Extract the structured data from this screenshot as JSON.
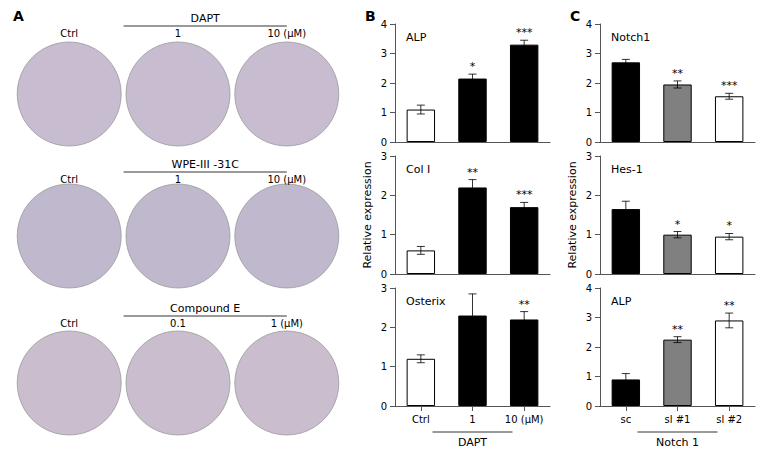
{
  "chart_data": [
    {
      "type": "image",
      "title": "A",
      "colors": [
        "#c8bcd0",
        "#c0b8cc",
        "#cabece"
      ],
      "annotations": [
        {
          "text": "DAPT",
          "labels": [
            "Ctrl",
            "1",
            "10 (μM)"
          ]
        },
        {
          "text": "WPE-III -31C",
          "labels": [
            "Ctrl",
            "1",
            "10 (μM)"
          ]
        },
        {
          "text": "Compound E",
          "labels": [
            "Ctrl",
            "0.1",
            "1 (μM)"
          ]
        }
      ]
    },
    {
      "type": "bar",
      "title": "ALP",
      "categories": [
        "Ctrl",
        "1",
        "10 (μM)"
      ],
      "values": [
        1.1,
        2.15,
        3.3
      ],
      "errors": [
        0.15,
        0.15,
        0.15
      ],
      "colors": [
        "white",
        "black",
        "black"
      ],
      "ylim": [
        0,
        4
      ],
      "yticks": [
        0,
        1,
        2,
        3,
        4
      ],
      "grid": false,
      "tick_labels": "y",
      "annotations": [
        {
          "text": "B"
        },
        {
          "category": "1",
          "text": "*"
        },
        {
          "category": "10 (μM)",
          "text": "***"
        }
      ]
    },
    {
      "type": "bar",
      "title": "Col I",
      "categories": [
        "Ctrl",
        "1",
        "10 (μM)"
      ],
      "values": [
        0.6,
        2.2,
        1.7
      ],
      "errors": [
        0.1,
        0.2,
        0.12
      ],
      "colors": [
        "white",
        "black",
        "black"
      ],
      "ylim": [
        0,
        3
      ],
      "yticks": [
        0,
        1,
        2,
        3
      ],
      "grid": false,
      "tick_labels": "y",
      "ylabel": "Relative expression",
      "annotations": [
        {
          "category": "1",
          "text": "**"
        },
        {
          "category": "10 (μM)",
          "text": "***"
        }
      ]
    },
    {
      "type": "bar",
      "title": "Osterix",
      "categories": [
        "Ctrl",
        "1",
        "10 (μM)"
      ],
      "values": [
        1.2,
        2.3,
        2.2
      ],
      "errors": [
        0.1,
        0.55,
        0.2
      ],
      "colors": [
        "white",
        "black",
        "black"
      ],
      "ylim": [
        0,
        3
      ],
      "yticks": [
        0,
        1,
        2,
        3
      ],
      "grid": false,
      "xlabel": "DAPT",
      "annotations": [
        {
          "category": "10 (μM)",
          "text": "**"
        }
      ]
    },
    {
      "type": "bar",
      "title": "Notch1",
      "categories": [
        "sc",
        "sl #1",
        "sl #2"
      ],
      "values": [
        2.7,
        1.95,
        1.55
      ],
      "errors": [
        0.1,
        0.12,
        0.1
      ],
      "colors": [
        "black",
        "gray",
        "white"
      ],
      "ylim": [
        0,
        4
      ],
      "yticks": [
        0,
        1,
        2,
        3,
        4
      ],
      "grid": false,
      "tick_labels": "y",
      "annotations": [
        {
          "text": "C"
        },
        {
          "category": "sl #1",
          "text": "**"
        },
        {
          "category": "sl #2",
          "text": "***"
        }
      ]
    },
    {
      "type": "bar",
      "title": "Hes-1",
      "categories": [
        "sc",
        "sl #1",
        "sl #2"
      ],
      "values": [
        1.65,
        1.0,
        0.95
      ],
      "errors": [
        0.2,
        0.08,
        0.08
      ],
      "colors": [
        "black",
        "gray",
        "white"
      ],
      "ylim": [
        0,
        3
      ],
      "yticks": [
        0,
        1,
        2,
        3
      ],
      "grid": false,
      "tick_labels": "y",
      "ylabel": "Relative expression",
      "annotations": [
        {
          "category": "sl #1",
          "text": "*"
        },
        {
          "category": "sl #2",
          "text": "*"
        }
      ]
    },
    {
      "type": "bar",
      "title": "ALP",
      "categories": [
        "sc",
        "sl #1",
        "sl #2"
      ],
      "values": [
        0.9,
        2.25,
        2.9
      ],
      "errors": [
        0.2,
        0.1,
        0.25
      ],
      "colors": [
        "black",
        "gray",
        "white"
      ],
      "ylim": [
        0,
        4
      ],
      "yticks": [
        0,
        1,
        2,
        3,
        4
      ],
      "grid": false,
      "xlabel": "Notch 1",
      "annotations": [
        {
          "category": "sl #1",
          "text": "**"
        },
        {
          "category": "sl #2",
          "text": "**"
        }
      ]
    }
  ]
}
